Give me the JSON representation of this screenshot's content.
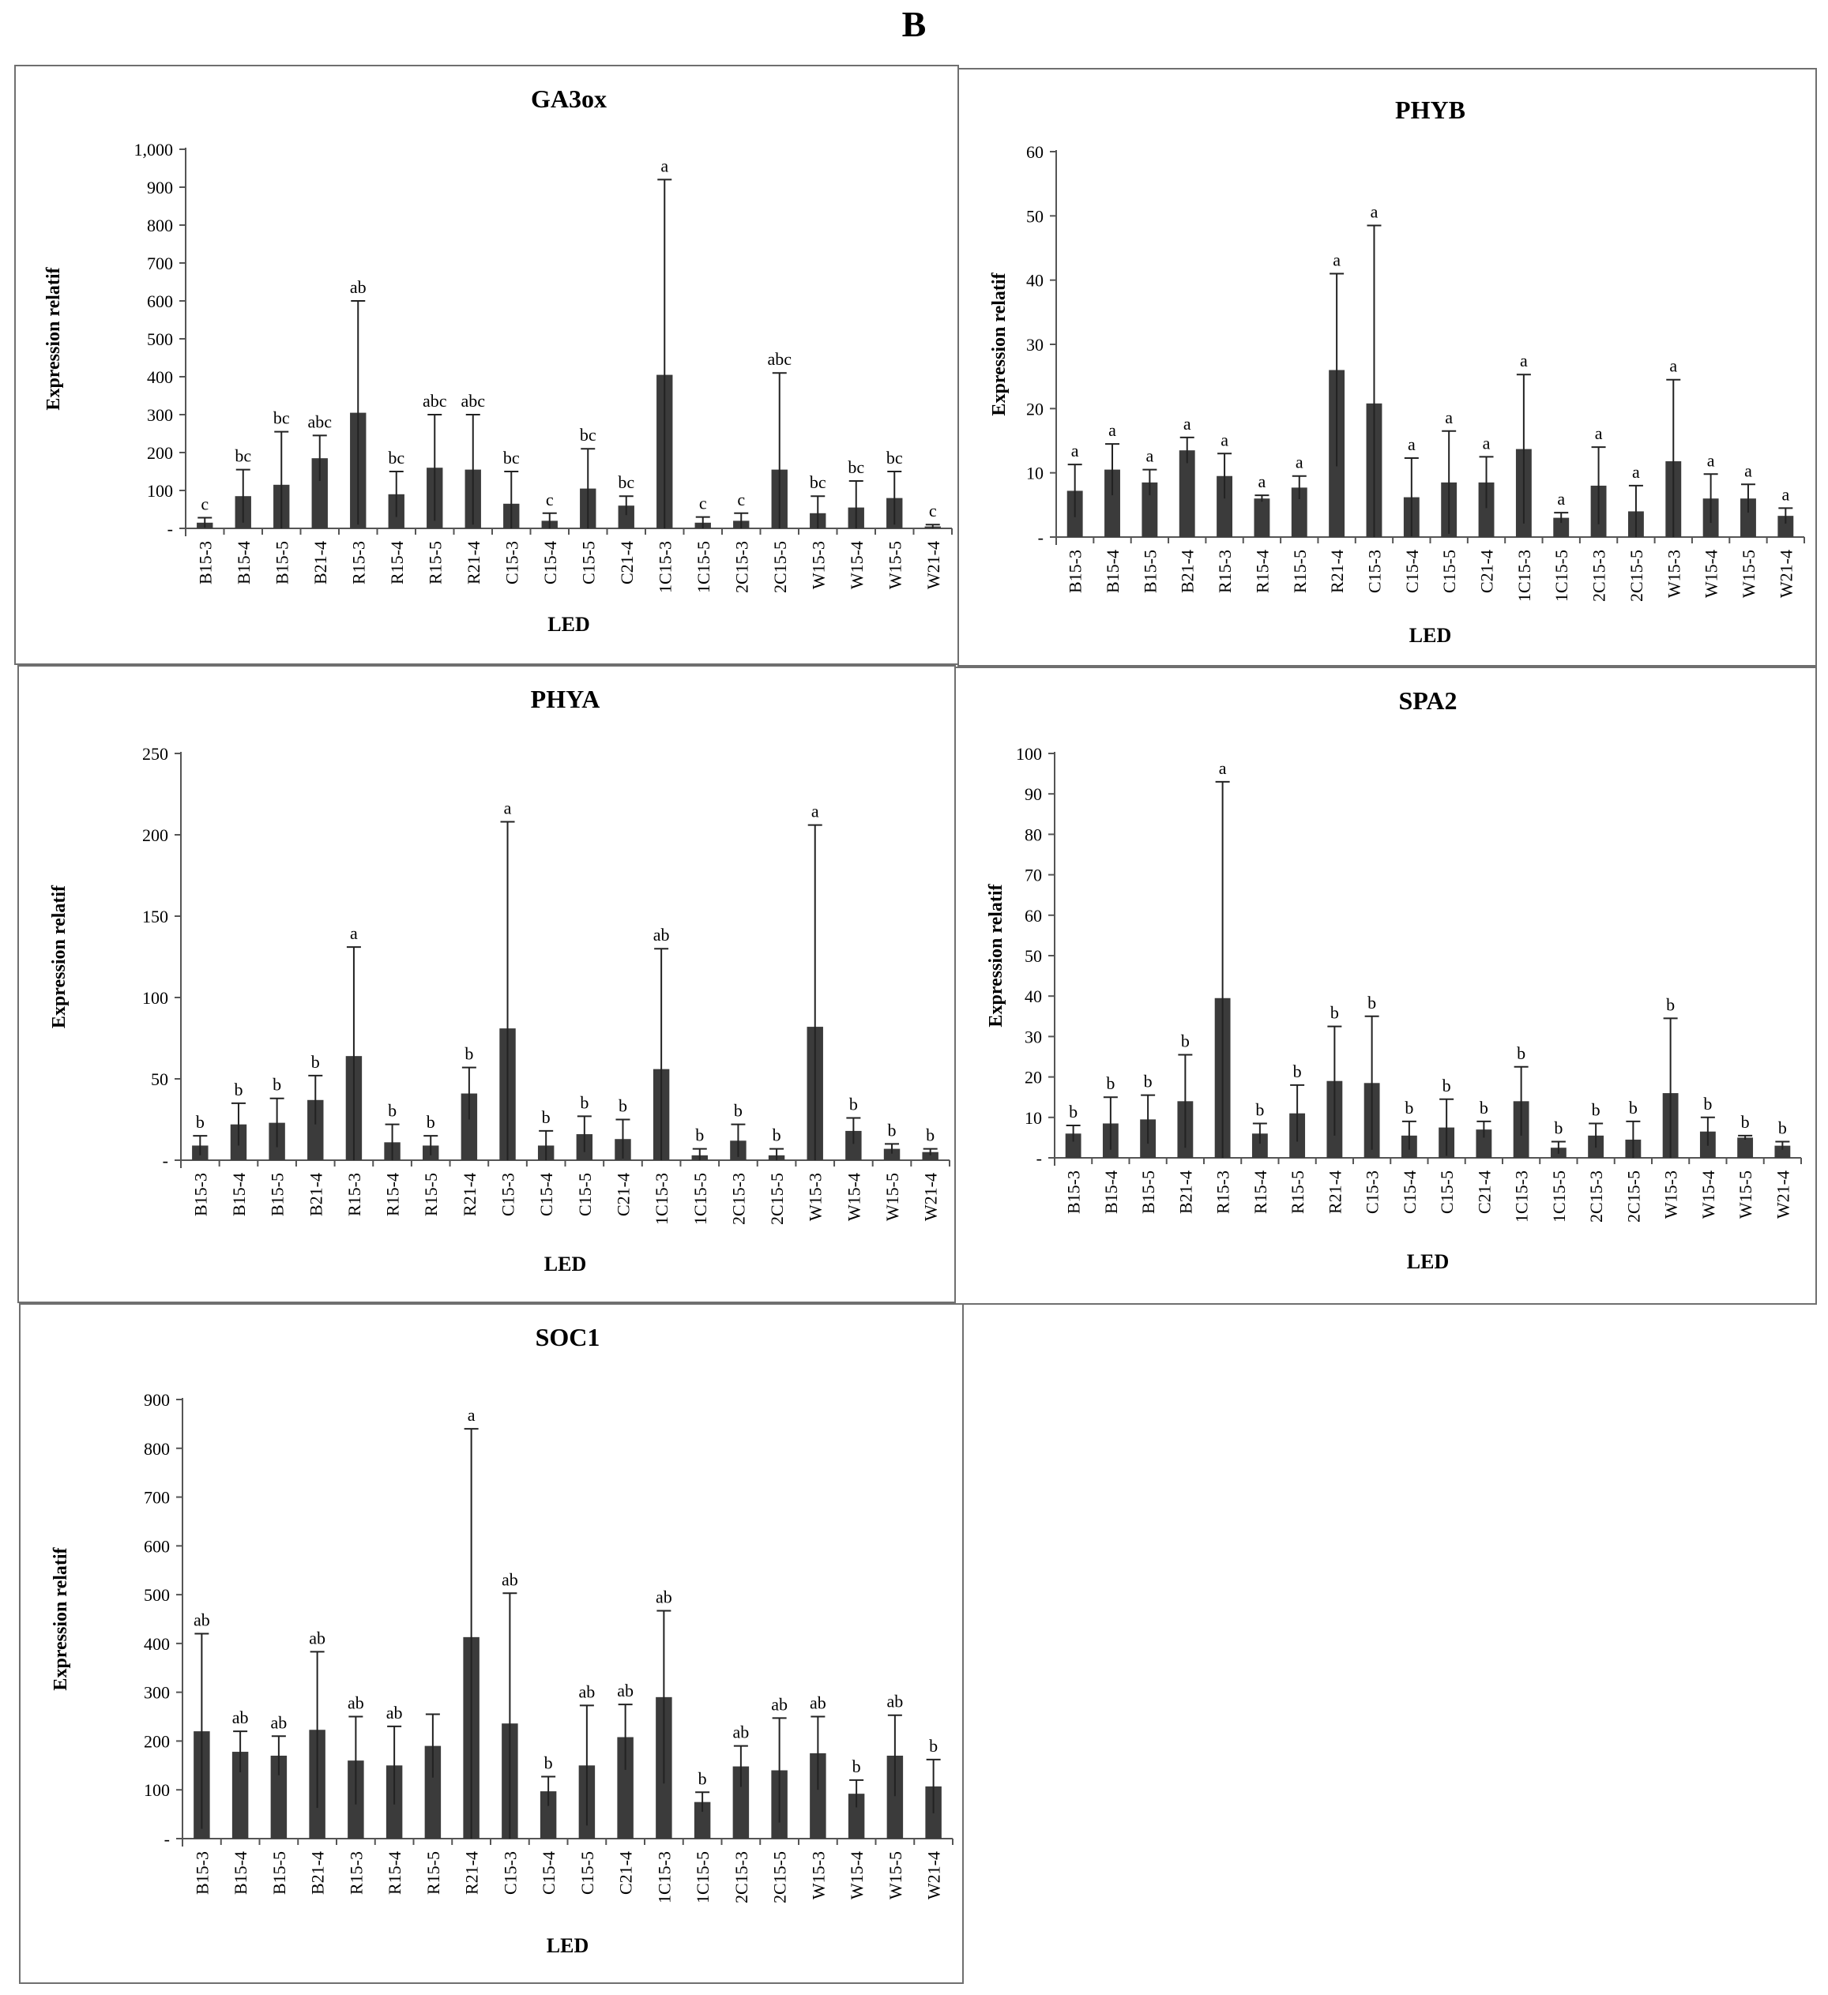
{
  "figure_label": "B",
  "chart_data": [
    {
      "type": "bar",
      "title": "GA3ox",
      "xlabel": "LED",
      "ylabel": "Expression  relatif",
      "ylim": [
        0,
        1000
      ],
      "yticks": [
        "-",
        "100",
        "200",
        "300",
        "400",
        "500",
        "600",
        "700",
        "800",
        "900",
        "1,000"
      ],
      "categories": [
        "B15-3",
        "B15-4",
        "B15-5",
        "B21-4",
        "R15-3",
        "R15-4",
        "R15-5",
        "R21-4",
        "C15-3",
        "C15-4",
        "C15-5",
        "C21-4",
        "1C15-3",
        "1C15-5",
        "2C15-3",
        "2C15-5",
        "W15-3",
        "W15-4",
        "W15-5",
        "W21-4"
      ],
      "values": [
        15,
        85,
        115,
        185,
        305,
        90,
        160,
        155,
        65,
        20,
        105,
        60,
        405,
        15,
        20,
        155,
        40,
        55,
        80,
        5
      ],
      "error_upper": [
        28,
        155,
        255,
        245,
        600,
        150,
        300,
        300,
        150,
        40,
        210,
        85,
        920,
        30,
        40,
        410,
        85,
        125,
        150,
        10
      ],
      "annotations": [
        "c",
        "bc",
        "bc",
        "abc",
        "ab",
        "bc",
        "abc",
        "abc",
        "bc",
        "c",
        "bc",
        "bc",
        "a",
        "c",
        "c",
        "abc",
        "bc",
        "bc",
        "bc",
        "c"
      ],
      "grid": false,
      "legend": "none"
    },
    {
      "type": "bar",
      "title": "PHYB",
      "xlabel": "LED",
      "ylabel": "Expression  relatif",
      "ylim": [
        0,
        60
      ],
      "yticks": [
        "-",
        "10",
        "20",
        "30",
        "40",
        "50",
        "60"
      ],
      "categories": [
        "B15-3",
        "B15-4",
        "B15-5",
        "B21-4",
        "R15-3",
        "R15-4",
        "R15-5",
        "R21-4",
        "C15-3",
        "C15-4",
        "C15-5",
        "C21-4",
        "1C15-3",
        "1C15-5",
        "2C15-3",
        "2C15-5",
        "W15-3",
        "W15-4",
        "W15-5",
        "W21-4"
      ],
      "values": [
        7.2,
        10.5,
        8.5,
        13.5,
        9.5,
        6,
        7.7,
        26,
        20.8,
        6.2,
        8.5,
        8.5,
        13.7,
        3,
        8,
        4,
        11.8,
        6,
        6,
        3.3
      ],
      "error_upper": [
        11.3,
        14.5,
        10.5,
        15.5,
        13,
        6.5,
        9.5,
        41,
        48.5,
        12.3,
        16.5,
        12.5,
        25.3,
        3.8,
        14,
        8,
        24.5,
        9.8,
        8.2,
        4.5
      ],
      "annotations": [
        "a",
        "a",
        "a",
        "a",
        "a",
        "a",
        "a",
        "a",
        "a",
        "a",
        "a",
        "a",
        "a",
        "a",
        "a",
        "a",
        "a",
        "a",
        "a",
        "a"
      ],
      "grid": false,
      "legend": "none"
    },
    {
      "type": "bar",
      "title": "PHYA",
      "xlabel": "LED",
      "ylabel": "Expression  relatif",
      "ylim": [
        0,
        250
      ],
      "yticks": [
        "-",
        "50",
        "100",
        "150",
        "200",
        "250"
      ],
      "categories": [
        "B15-3",
        "B15-4",
        "B15-5",
        "B21-4",
        "R15-3",
        "R15-4",
        "R15-5",
        "R21-4",
        "C15-3",
        "C15-4",
        "C15-5",
        "C21-4",
        "1C15-3",
        "1C15-5",
        "2C15-3",
        "2C15-5",
        "W15-3",
        "W15-4",
        "W15-5",
        "W21-4"
      ],
      "values": [
        9,
        22,
        23,
        37,
        64,
        11,
        9,
        41,
        81,
        9,
        16,
        13,
        56,
        3,
        12,
        3,
        82,
        18,
        7,
        5
      ],
      "error_upper": [
        15,
        35,
        38,
        52,
        131,
        22,
        15,
        57,
        208,
        18,
        27,
        25,
        130,
        7,
        22,
        7,
        206,
        26,
        10,
        7
      ],
      "annotations": [
        "b",
        "b",
        "b",
        "b",
        "a",
        "b",
        "b",
        "b",
        "a",
        "b",
        "b",
        "b",
        "ab",
        "b",
        "b",
        "b",
        "a",
        "b",
        "b",
        "b"
      ],
      "grid": false,
      "legend": "none"
    },
    {
      "type": "bar",
      "title": "SPA2",
      "xlabel": "LED",
      "ylabel": "Expression  relatif",
      "ylim": [
        0,
        100
      ],
      "yticks": [
        "-",
        "10",
        "20",
        "30",
        "40",
        "50",
        "60",
        "70",
        "80",
        "90",
        "100"
      ],
      "categories": [
        "B15-3",
        "B15-4",
        "B15-5",
        "B21-4",
        "R15-3",
        "R15-4",
        "R15-5",
        "R21-4",
        "C15-3",
        "C15-4",
        "C15-5",
        "C21-4",
        "1C15-3",
        "1C15-5",
        "2C15-3",
        "2C15-5",
        "W15-3",
        "W15-4",
        "W15-5",
        "W21-4"
      ],
      "values": [
        6,
        8.5,
        9.5,
        14,
        39.5,
        6,
        11,
        19,
        18.5,
        5.5,
        7.5,
        7,
        14,
        2.5,
        5.5,
        4.5,
        16,
        6.5,
        5,
        3
      ],
      "error_upper": [
        8,
        15,
        15.5,
        25.5,
        93,
        8.5,
        18,
        32.5,
        35,
        9,
        14.5,
        9,
        22.5,
        4,
        8.5,
        9,
        34.5,
        10,
        5.5,
        4
      ],
      "annotations": [
        "b",
        "b",
        "b",
        "b",
        "a",
        "b",
        "b",
        "b",
        "b",
        "b",
        "b",
        "b",
        "b",
        "b",
        "b",
        "b",
        "b",
        "b",
        "b",
        "b"
      ],
      "grid": false,
      "legend": "none"
    },
    {
      "type": "bar",
      "title": "SOC1",
      "xlabel": "LED",
      "ylabel": "Expression  relatif",
      "ylim": [
        0,
        900
      ],
      "yticks": [
        "-",
        "100",
        "200",
        "300",
        "400",
        "500",
        "600",
        "700",
        "800",
        "900"
      ],
      "categories": [
        "B15-3",
        "B15-4",
        "B15-5",
        "B21-4",
        "R15-3",
        "R15-4",
        "R15-5",
        "R21-4",
        "C15-3",
        "C15-4",
        "C15-5",
        "C21-4",
        "1C15-3",
        "1C15-5",
        "2C15-3",
        "2C15-5",
        "W15-3",
        "W15-4",
        "W15-5",
        "W21-4"
      ],
      "values": [
        220,
        178,
        170,
        223,
        160,
        150,
        190,
        413,
        236,
        97,
        150,
        208,
        290,
        75,
        148,
        140,
        175,
        92,
        170,
        107
      ],
      "error_upper": [
        420,
        220,
        210,
        383,
        250,
        230,
        255,
        840,
        503,
        127,
        273,
        275,
        467,
        95,
        190,
        247,
        250,
        120,
        253,
        162
      ],
      "annotations": [
        "ab",
        "ab",
        "ab",
        "ab",
        "ab",
        "ab",
        "",
        "a",
        "ab",
        "b",
        "ab",
        "ab",
        "ab",
        "b",
        "ab",
        "ab",
        "ab",
        "b",
        "ab",
        "b"
      ],
      "grid": false,
      "legend": "none"
    }
  ]
}
